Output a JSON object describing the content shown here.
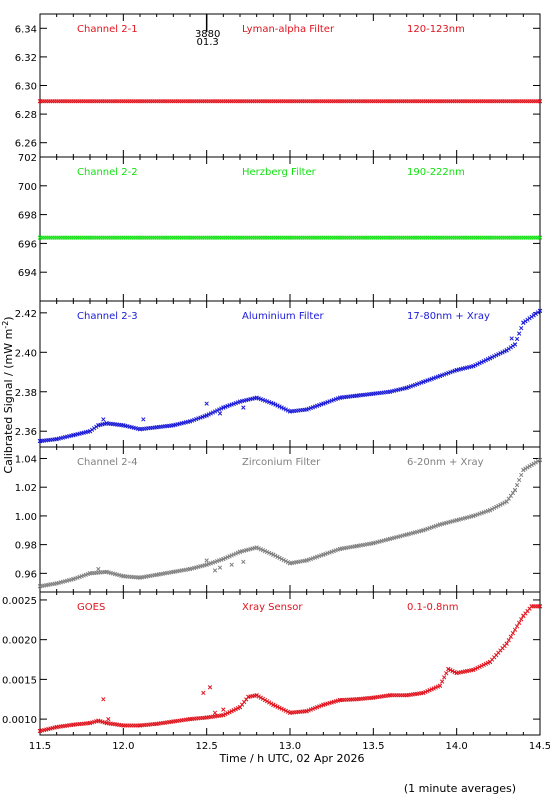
{
  "x_axis": {
    "label": "Time / h UTC, 02 Apr 2026",
    "range": [
      11.5,
      14.5
    ],
    "ticks": [
      "11.5",
      "12.0",
      "12.5",
      "13.0",
      "13.5",
      "14.0",
      "14.5"
    ]
  },
  "y_axis_label": "Calibrated Signal / (mW m",
  "y_axis_label_exp": "-2",
  "y_axis_label_close": ")",
  "footnote": "(1 minute averages)",
  "marker": {
    "x": 12.5,
    "label_top": "3880",
    "label_bottom": "01.3"
  },
  "chart_data": [
    {
      "type": "scatter",
      "channel": "Channel 2-1",
      "filter": "Lyman-alpha Filter",
      "band": "120-123nm",
      "color": "#e0141e",
      "ylim": [
        6.25,
        6.35
      ],
      "yticks": [
        "6.26",
        "6.28",
        "6.30",
        "6.32",
        "6.34"
      ],
      "series": [
        {
          "x": [
            11.5,
            14.5
          ],
          "y": [
            6.289,
            6.289
          ]
        }
      ]
    },
    {
      "type": "scatter",
      "channel": "Channel 2-2",
      "filter": "Herzberg Filter",
      "band": "190-222nm",
      "color": "#12e012",
      "ylim": [
        692,
        702
      ],
      "yticks": [
        "694",
        "696",
        "698",
        "700",
        "702"
      ],
      "series": [
        {
          "x": [
            11.5,
            14.5
          ],
          "y": [
            696.4,
            696.4
          ]
        }
      ]
    },
    {
      "type": "scatter",
      "channel": "Channel 2-3",
      "filter": "Aluminium Filter",
      "band": "17-80nm + Xray",
      "color": "#1a1ad8",
      "ylim": [
        2.352,
        2.426
      ],
      "yticks": [
        "2.36",
        "2.38",
        "2.40",
        "2.42"
      ],
      "series": [
        {
          "x": [
            11.5,
            11.6,
            11.7,
            11.8,
            11.85,
            11.9,
            12.0,
            12.1,
            12.2,
            12.3,
            12.4,
            12.5,
            12.6,
            12.7,
            12.8,
            12.9,
            13.0,
            13.1,
            13.2,
            13.3,
            13.4,
            13.5,
            13.6,
            13.7,
            13.8,
            13.9,
            14.0,
            14.1,
            14.2,
            14.3,
            14.35,
            14.4,
            14.5
          ],
          "y": [
            2.355,
            2.356,
            2.358,
            2.36,
            2.363,
            2.364,
            2.363,
            2.361,
            2.362,
            2.363,
            2.365,
            2.368,
            2.372,
            2.375,
            2.377,
            2.374,
            2.37,
            2.371,
            2.374,
            2.377,
            2.378,
            2.379,
            2.38,
            2.382,
            2.385,
            2.388,
            2.391,
            2.393,
            2.397,
            2.401,
            2.404,
            2.415,
            2.421
          ]
        }
      ],
      "outliers": {
        "x": [
          11.88,
          12.12,
          12.5,
          12.58,
          12.72,
          14.33
        ],
        "y": [
          2.366,
          2.366,
          2.374,
          2.369,
          2.372,
          2.407
        ]
      }
    },
    {
      "type": "scatter",
      "channel": "Channel 2-4",
      "filter": "Zirconium Filter",
      "band": "6-20nm + Xray",
      "color": "#808080",
      "ylim": [
        0.947,
        1.048
      ],
      "yticks": [
        "0.96",
        "0.98",
        "1.00",
        "1.02",
        "1.04"
      ],
      "series": [
        {
          "x": [
            11.5,
            11.6,
            11.7,
            11.8,
            11.9,
            12.0,
            12.1,
            12.2,
            12.3,
            12.4,
            12.5,
            12.6,
            12.7,
            12.8,
            12.9,
            13.0,
            13.1,
            13.2,
            13.3,
            13.4,
            13.5,
            13.6,
            13.7,
            13.8,
            13.9,
            14.0,
            14.1,
            14.2,
            14.3,
            14.35,
            14.4,
            14.5
          ],
          "y": [
            0.951,
            0.953,
            0.956,
            0.96,
            0.961,
            0.958,
            0.957,
            0.959,
            0.961,
            0.963,
            0.966,
            0.97,
            0.975,
            0.978,
            0.973,
            0.967,
            0.969,
            0.973,
            0.977,
            0.979,
            0.981,
            0.984,
            0.987,
            0.99,
            0.994,
            0.997,
            1.0,
            1.004,
            1.01,
            1.018,
            1.032,
            1.039
          ]
        }
      ],
      "outliers": {
        "x": [
          11.85,
          12.5,
          12.55,
          12.58,
          12.65,
          12.72
        ],
        "y": [
          0.963,
          0.969,
          0.962,
          0.964,
          0.966,
          0.968
        ]
      }
    },
    {
      "type": "scatter",
      "channel": "GOES",
      "filter": "Xray Sensor",
      "band": "0.1-0.8nm",
      "color": "#e0141e",
      "ylim": [
        0.0008,
        0.0026
      ],
      "yticks": [
        "0.0010",
        "0.0015",
        "0.0020",
        "0.0025"
      ],
      "series": [
        {
          "x": [
            11.5,
            11.6,
            11.7,
            11.8,
            11.85,
            11.9,
            12.0,
            12.1,
            12.2,
            12.3,
            12.4,
            12.5,
            12.6,
            12.7,
            12.75,
            12.8,
            12.9,
            13.0,
            13.1,
            13.2,
            13.3,
            13.4,
            13.5,
            13.6,
            13.7,
            13.8,
            13.9,
            13.95,
            14.0,
            14.1,
            14.2,
            14.3,
            14.4,
            14.45,
            14.5
          ],
          "y": [
            0.00085,
            0.0009,
            0.00093,
            0.00095,
            0.00098,
            0.00095,
            0.00092,
            0.00092,
            0.00094,
            0.00097,
            0.001,
            0.00102,
            0.00105,
            0.00115,
            0.00128,
            0.0013,
            0.00118,
            0.00108,
            0.0011,
            0.00118,
            0.00124,
            0.00125,
            0.00127,
            0.0013,
            0.0013,
            0.00133,
            0.00142,
            0.00163,
            0.00158,
            0.00162,
            0.00172,
            0.00195,
            0.0023,
            0.00242,
            0.00242
          ]
        }
      ],
      "outliers": {
        "x": [
          11.88,
          11.91,
          12.48,
          12.52,
          12.55,
          12.6
        ],
        "y": [
          0.00125,
          0.001,
          0.00133,
          0.0014,
          0.00108,
          0.00112
        ]
      }
    }
  ]
}
